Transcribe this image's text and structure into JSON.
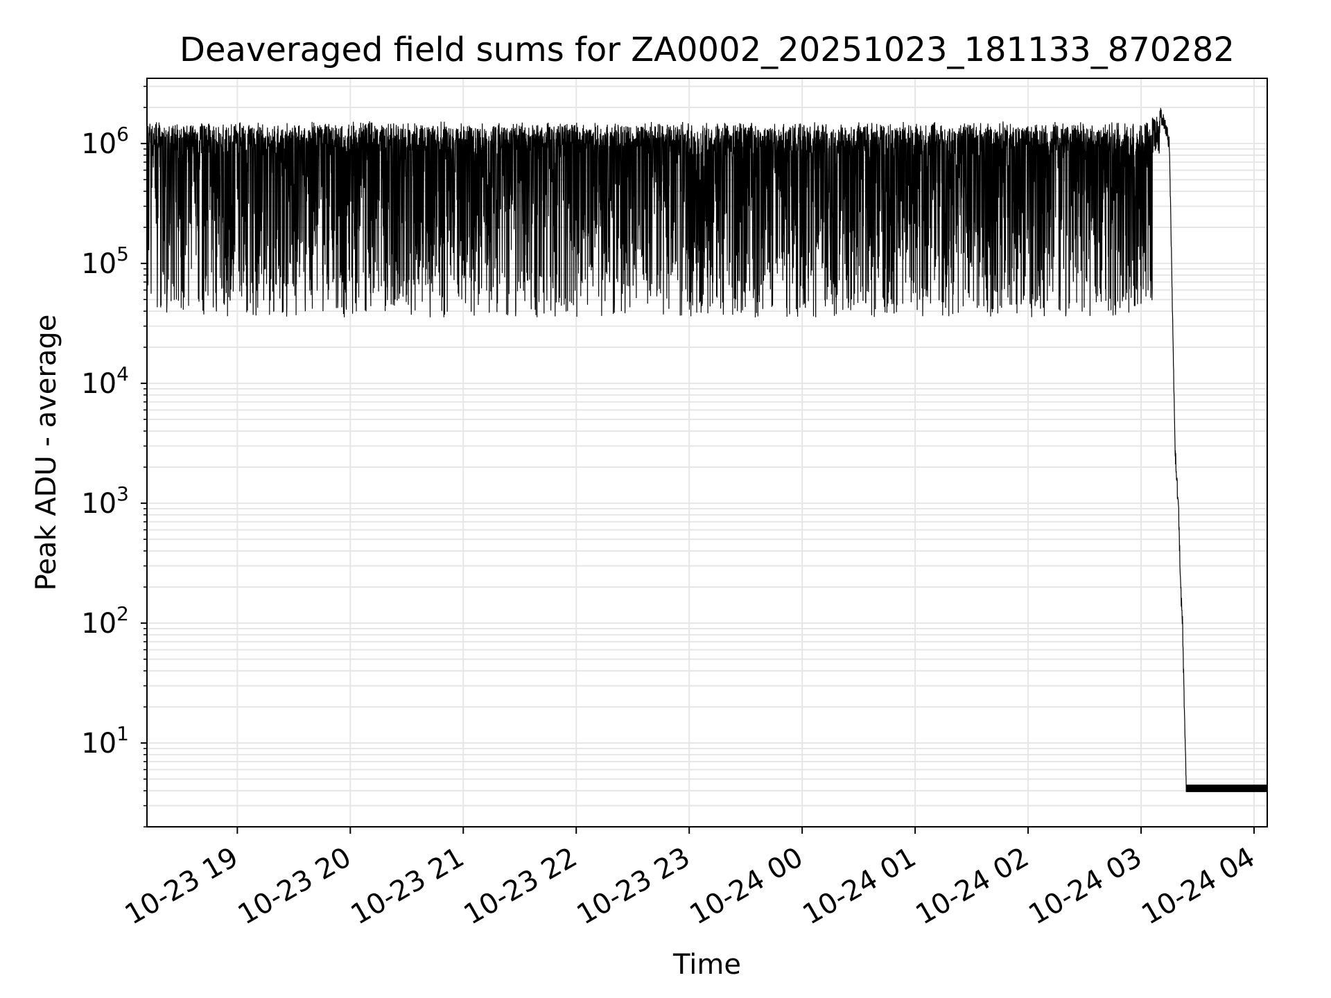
{
  "chart_data": {
    "type": "line",
    "title": "Deaveraged field sums for ZA0002_20251023_181133_870282",
    "xlabel": "Time",
    "ylabel": "Peak ADU - average",
    "yscale": "log",
    "ylim": [
      2,
      3500000
    ],
    "xlim": [
      "2025-10-23 18:12",
      "2025-10-24 04:07"
    ],
    "grid": true,
    "line_color": "#000000",
    "grid_color": "#e6e6e6",
    "x_ticks": [
      {
        "value": "2025-10-23 19:00",
        "label": "10-23 19"
      },
      {
        "value": "2025-10-23 20:00",
        "label": "10-23 20"
      },
      {
        "value": "2025-10-23 21:00",
        "label": "10-23 21"
      },
      {
        "value": "2025-10-23 22:00",
        "label": "10-23 22"
      },
      {
        "value": "2025-10-23 23:00",
        "label": "10-23 23"
      },
      {
        "value": "2025-10-24 00:00",
        "label": "10-24 00"
      },
      {
        "value": "2025-10-24 01:00",
        "label": "10-24 01"
      },
      {
        "value": "2025-10-24 02:00",
        "label": "10-24 02"
      },
      {
        "value": "2025-10-24 03:00",
        "label": "10-24 03"
      },
      {
        "value": "2025-10-24 04:00",
        "label": "10-24 04"
      }
    ],
    "y_ticks": [
      {
        "value": 10,
        "base": "10",
        "exp": "1"
      },
      {
        "value": 100,
        "base": "10",
        "exp": "2"
      },
      {
        "value": 1000,
        "base": "10",
        "exp": "3"
      },
      {
        "value": 10000,
        "base": "10",
        "exp": "4"
      },
      {
        "value": 100000,
        "base": "10",
        "exp": "5"
      },
      {
        "value": 1000000,
        "base": "10",
        "exp": "6"
      }
    ],
    "series": [
      {
        "x": [
          "2025-10-23 18:12",
          "2025-10-23 18:20",
          "2025-10-23 18:35",
          "2025-10-23 18:50",
          "2025-10-23 19:05",
          "2025-10-23 19:20",
          "2025-10-23 19:35",
          "2025-10-23 19:50",
          "2025-10-23 20:05",
          "2025-10-23 20:20",
          "2025-10-23 20:35",
          "2025-10-23 20:50",
          "2025-10-23 21:05",
          "2025-10-23 21:20",
          "2025-10-23 21:35",
          "2025-10-23 21:50",
          "2025-10-23 22:05",
          "2025-10-23 22:20",
          "2025-10-23 22:35",
          "2025-10-23 22:50",
          "2025-10-23 23:05",
          "2025-10-23 23:20",
          "2025-10-23 23:35",
          "2025-10-23 23:50",
          "2025-10-24 00:05",
          "2025-10-24 00:20",
          "2025-10-24 00:35",
          "2025-10-24 00:50",
          "2025-10-24 01:05",
          "2025-10-24 01:20",
          "2025-10-24 01:35",
          "2025-10-24 01:50",
          "2025-10-24 02:05",
          "2025-10-24 02:20",
          "2025-10-24 02:35",
          "2025-10-24 02:50",
          "2025-10-24 03:05",
          "2025-10-24 03:10",
          "2025-10-24 03:13",
          "2025-10-24 03:15",
          "2025-10-24 03:18",
          "2025-10-24 03:20",
          "2025-10-24 03:21",
          "2025-10-24 03:22",
          "2025-10-24 03:24",
          "2025-10-24 03:40",
          "2025-10-24 04:07"
        ],
        "y": [
          1000000,
          600000,
          700000,
          650000,
          750000,
          800000,
          700000,
          850000,
          750000,
          900000,
          800000,
          850000,
          900000,
          800000,
          850000,
          900000,
          850000,
          800000,
          850000,
          900000,
          850000,
          800000,
          850000,
          900000,
          850000,
          900000,
          950000,
          900000,
          850000,
          900000,
          850000,
          800000,
          600000,
          700000,
          800000,
          900000,
          1000000,
          1800000,
          1400000,
          1000000,
          3000,
          800,
          200,
          100,
          4,
          4,
          4
        ]
      }
    ]
  }
}
